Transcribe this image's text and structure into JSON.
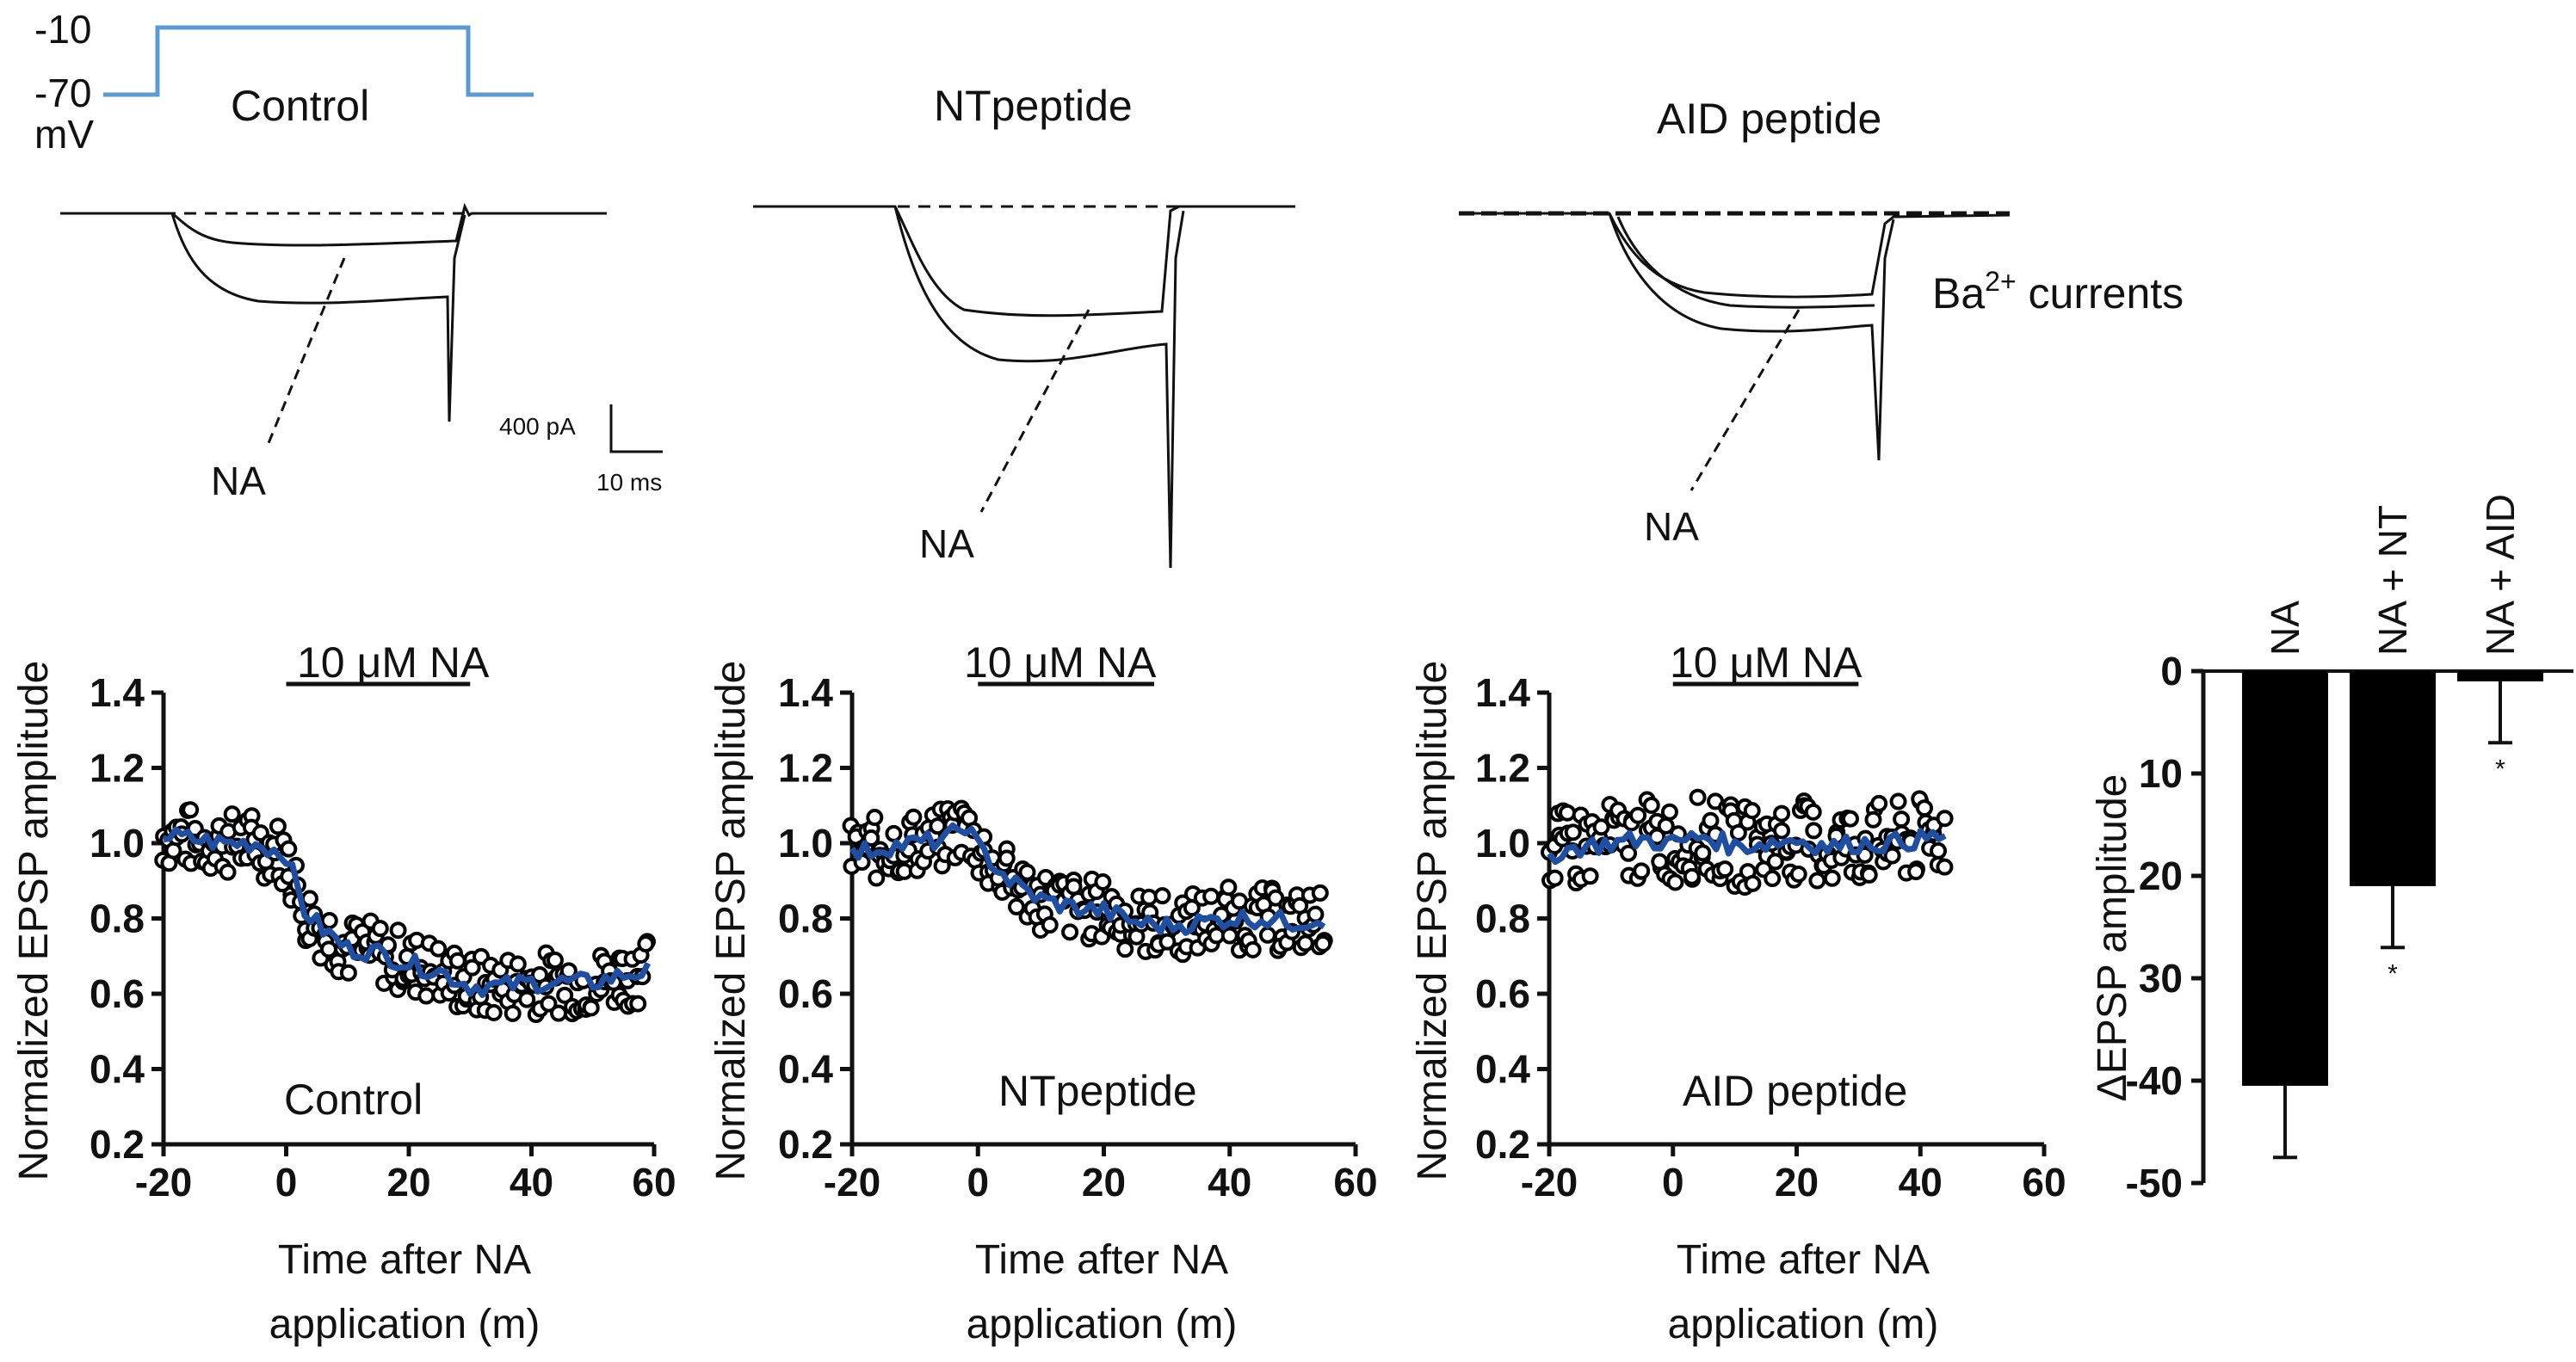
{
  "protocol": {
    "label_top": "-10",
    "label_bottom": "-70",
    "unit": "mV"
  },
  "trace_label": "Ba2+ currents",
  "scale_bar": {
    "current": "400 pA",
    "time": "10 ms"
  },
  "traces": [
    {
      "title": "Control",
      "drug_label": "NA"
    },
    {
      "title": "NTpeptide",
      "drug_label": "NA"
    },
    {
      "title": "AID peptide",
      "drug_label": "NA"
    }
  ],
  "colors": {
    "mean_line": "#1f4fa3",
    "points": "#000000",
    "bars": "#000000",
    "protocol": "#5b9bd5",
    "ylabel_accent": "#c0392b"
  },
  "chart_data": [
    {
      "type": "scatter",
      "title": "Control",
      "annotation": "10 μM NA",
      "xlabel": "Time after NA application (m)",
      "ylabel": "Normalized EPSP amplitude",
      "xlim": [
        -20,
        60
      ],
      "ylim": [
        0.2,
        1.4
      ],
      "xticks": [
        -20,
        0,
        20,
        40,
        60
      ],
      "yticks": [
        0.2,
        0.4,
        0.6,
        0.8,
        1.0,
        1.2,
        1.4
      ],
      "drug_period": [
        0,
        30
      ],
      "series": [
        {
          "x": [
            -20,
            -15,
            -10,
            -5,
            0,
            3,
            6,
            10,
            15,
            20,
            25,
            30,
            35,
            40,
            45,
            50,
            55,
            59
          ],
          "y": [
            1.02,
            1.01,
            1.0,
            1.0,
            0.97,
            0.82,
            0.77,
            0.72,
            0.71,
            0.68,
            0.66,
            0.62,
            0.62,
            0.63,
            0.63,
            0.63,
            0.65,
            0.66
          ]
        }
      ]
    },
    {
      "type": "scatter",
      "title": "NTpeptide",
      "annotation": "10 μM NA",
      "xlabel": "Time after NA application (m)",
      "ylabel": "Normalized EPSP amplitude",
      "xlim": [
        -20,
        60
      ],
      "ylim": [
        0.2,
        1.4
      ],
      "xticks": [
        -20,
        0,
        20,
        40,
        60
      ],
      "yticks": [
        0.2,
        0.4,
        0.6,
        0.8,
        1.0,
        1.2,
        1.4
      ],
      "drug_period": [
        0,
        28
      ],
      "series": [
        {
          "x": [
            -20,
            -15,
            -10,
            -5,
            -2,
            0,
            5,
            10,
            15,
            20,
            25,
            30,
            35,
            40,
            45,
            50,
            55
          ],
          "y": [
            0.97,
            0.99,
            1.0,
            1.01,
            1.05,
            0.99,
            0.9,
            0.85,
            0.83,
            0.82,
            0.79,
            0.78,
            0.79,
            0.8,
            0.8,
            0.79,
            0.8
          ]
        }
      ]
    },
    {
      "type": "scatter",
      "title": "AID peptide",
      "annotation": "10 μM NA",
      "xlabel": "Time after NA application (m)",
      "ylabel": "Normalized EPSP amplitude",
      "xlim": [
        -20,
        60
      ],
      "ylim": [
        0.2,
        1.4
      ],
      "xticks": [
        -20,
        0,
        20,
        40,
        60
      ],
      "yticks": [
        0.2,
        0.4,
        0.6,
        0.8,
        1.0,
        1.2,
        1.4
      ],
      "drug_period": [
        0,
        30
      ],
      "series": [
        {
          "x": [
            -20,
            -15,
            -10,
            -5,
            0,
            5,
            10,
            15,
            20,
            25,
            30,
            35,
            40,
            44
          ],
          "y": [
            0.97,
            0.99,
            1.0,
            1.01,
            1.0,
            1.02,
            0.99,
            1.0,
            1.01,
            0.99,
            1.0,
            1.0,
            1.01,
            1.02
          ]
        }
      ]
    },
    {
      "type": "bar",
      "categories": [
        "NA",
        "NA + NT",
        "NA + AID"
      ],
      "values": [
        -40.5,
        -21,
        -1
      ],
      "errors": [
        7,
        6,
        6
      ],
      "significance": [
        "",
        "*",
        "*"
      ],
      "ylabel": "ΔEPSP amplitude",
      "ylim": [
        -50,
        0
      ],
      "yticks": [
        0,
        -10,
        -20,
        -30,
        -40,
        -50
      ],
      "yticklabels": [
        "0",
        "10",
        "20",
        "30",
        "-40",
        "-50"
      ]
    }
  ]
}
